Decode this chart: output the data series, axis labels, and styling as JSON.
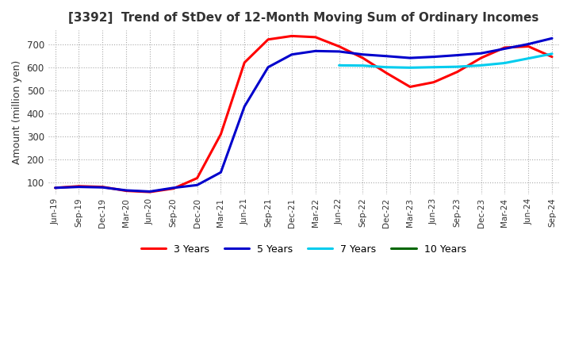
{
  "title": "[3392]  Trend of StDev of 12-Month Moving Sum of Ordinary Incomes",
  "ylabel": "Amount (million yen)",
  "ylim": [
    50,
    760
  ],
  "yticks": [
    100,
    200,
    300,
    400,
    500,
    600,
    700
  ],
  "line_colors": {
    "3 Years": "#FF0000",
    "5 Years": "#0000CC",
    "7 Years": "#00CCEE",
    "10 Years": "#006600"
  },
  "x_labels": [
    "Jun-19",
    "Sep-19",
    "Dec-19",
    "Mar-20",
    "Jun-20",
    "Sep-20",
    "Dec-20",
    "Mar-21",
    "Jun-21",
    "Sep-21",
    "Dec-21",
    "Mar-22",
    "Jun-22",
    "Sep-22",
    "Dec-22",
    "Mar-23",
    "Jun-23",
    "Sep-23",
    "Dec-23",
    "Mar-24",
    "Jun-24",
    "Sep-24"
  ],
  "series": {
    "3 Years": [
      78,
      85,
      82,
      65,
      60,
      75,
      120,
      310,
      620,
      720,
      735,
      730,
      690,
      640,
      575,
      515,
      535,
      580,
      640,
      685,
      690,
      645
    ],
    "5 Years": [
      78,
      82,
      80,
      67,
      62,
      78,
      90,
      145,
      430,
      600,
      655,
      670,
      668,
      655,
      648,
      640,
      645,
      652,
      660,
      680,
      700,
      725
    ],
    "7 Years": [
      null,
      null,
      null,
      null,
      null,
      null,
      null,
      null,
      null,
      null,
      null,
      null,
      608,
      607,
      600,
      598,
      600,
      602,
      608,
      618,
      638,
      658
    ],
    "10 Years": [
      null,
      null,
      null,
      null,
      null,
      null,
      null,
      null,
      null,
      null,
      null,
      null,
      null,
      null,
      null,
      null,
      null,
      null,
      null,
      null,
      null,
      null
    ]
  }
}
